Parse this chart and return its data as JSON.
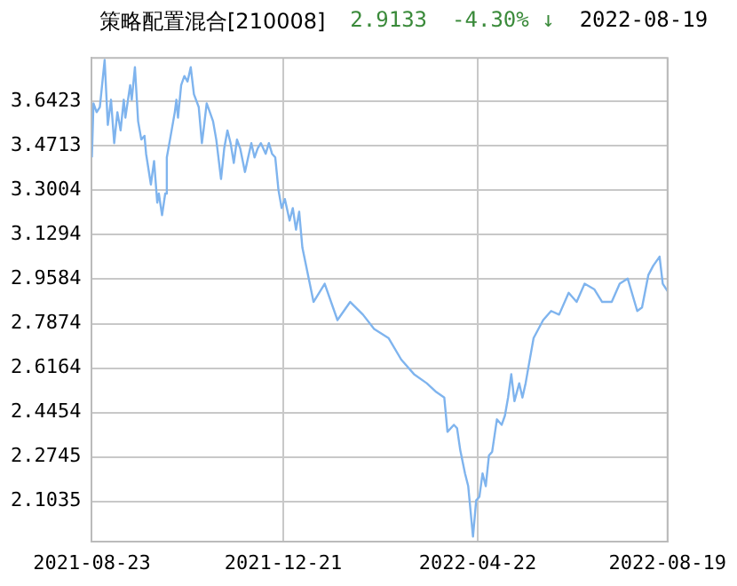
{
  "chart_data": {
    "type": "line",
    "title": "策略配置混合[210008]",
    "annotations": [
      "2.9133",
      "-4.30% ↓",
      "2022-08-19"
    ],
    "x": [
      "2021-08-23",
      "2021-08-24",
      "2021-08-26",
      "2021-08-28",
      "2021-08-31",
      "2021-09-02",
      "2021-09-04",
      "2021-09-06",
      "2021-09-08",
      "2021-09-10",
      "2021-09-12",
      "2021-09-13",
      "2021-09-16",
      "2021-09-17",
      "2021-09-19",
      "2021-09-21",
      "2021-09-23",
      "2021-09-25",
      "2021-09-26",
      "2021-09-29",
      "2021-10-01",
      "2021-10-03",
      "2021-10-04",
      "2021-10-06",
      "2021-10-08",
      "2021-10-09",
      "2021-10-11",
      "2021-10-14",
      "2021-10-15",
      "2021-10-16",
      "2021-10-18",
      "2021-10-20",
      "2021-10-22",
      "2021-10-24",
      "2021-10-26",
      "2021-10-29",
      "2021-10-31",
      "2021-11-01",
      "2021-11-03",
      "2021-11-05",
      "2021-11-07",
      "2021-11-09",
      "2021-11-12",
      "2021-11-14",
      "2021-11-16",
      "2021-11-18",
      "2021-11-20",
      "2021-11-22",
      "2021-11-24",
      "2021-11-27",
      "2021-11-29",
      "2021-12-01",
      "2021-12-03",
      "2021-12-05",
      "2021-12-07",
      "2021-12-10",
      "2021-12-12",
      "2021-12-14",
      "2021-12-16",
      "2021-12-18",
      "2021-12-20",
      "2021-12-22",
      "2021-12-25",
      "2021-12-27",
      "2021-12-29",
      "2021-12-31",
      "2022-01-02",
      "2022-01-09",
      "2022-01-16",
      "2022-01-24",
      "2022-02-01",
      "2022-02-09",
      "2022-02-16",
      "2022-02-25",
      "2022-03-05",
      "2022-03-13",
      "2022-03-21",
      "2022-03-27",
      "2022-04-01",
      "2022-04-03",
      "2022-04-07",
      "2022-04-09",
      "2022-04-11",
      "2022-04-14",
      "2022-04-16",
      "2022-04-19",
      "2022-04-21",
      "2022-04-23",
      "2022-04-25",
      "2022-04-27",
      "2022-04-29",
      "2022-05-01",
      "2022-05-04",
      "2022-05-07",
      "2022-05-09",
      "2022-05-11",
      "2022-05-13",
      "2022-05-15",
      "2022-05-18",
      "2022-05-20",
      "2022-05-22",
      "2022-05-24",
      "2022-05-27",
      "2022-06-02",
      "2022-06-07",
      "2022-06-12",
      "2022-06-18",
      "2022-06-23",
      "2022-06-28",
      "2022-07-04",
      "2022-07-09",
      "2022-07-15",
      "2022-07-20",
      "2022-07-25",
      "2022-07-31",
      "2022-08-03",
      "2022-08-07",
      "2022-08-10",
      "2022-08-14",
      "2022-08-16",
      "2022-08-19"
    ],
    "series": [
      {
        "color": "#7fb4ee",
        "values": [
          3.427,
          3.635,
          3.601,
          3.621,
          3.802,
          3.552,
          3.649,
          3.482,
          3.601,
          3.531,
          3.649,
          3.58,
          3.705,
          3.649,
          3.774,
          3.566,
          3.496,
          3.51,
          3.441,
          3.323,
          3.413,
          3.253,
          3.288,
          3.205,
          3.288,
          3.427,
          3.496,
          3.601,
          3.649,
          3.58,
          3.705,
          3.74,
          3.719,
          3.774,
          3.67,
          3.621,
          3.482,
          3.531,
          3.635,
          3.601,
          3.566,
          3.496,
          3.344,
          3.462,
          3.531,
          3.482,
          3.406,
          3.496,
          3.462,
          3.371,
          3.427,
          3.482,
          3.427,
          3.462,
          3.482,
          3.441,
          3.482,
          3.441,
          3.427,
          3.302,
          3.232,
          3.267,
          3.184,
          3.232,
          3.149,
          3.218,
          3.08,
          2.871,
          2.941,
          2.801,
          2.871,
          2.822,
          2.767,
          2.732,
          2.649,
          2.593,
          2.558,
          2.524,
          2.503,
          2.371,
          2.398,
          2.385,
          2.301,
          2.211,
          2.162,
          1.968,
          2.107,
          2.121,
          2.211,
          2.162,
          2.28,
          2.294,
          2.419,
          2.398,
          2.433,
          2.503,
          2.593,
          2.489,
          2.558,
          2.503,
          2.558,
          2.628,
          2.732,
          2.801,
          2.836,
          2.822,
          2.906,
          2.871,
          2.941,
          2.92,
          2.871,
          2.871,
          2.941,
          2.961,
          2.836,
          2.85,
          2.975,
          3.01,
          3.045,
          2.941,
          2.913
        ]
      }
    ],
    "xlim": [
      "2021-08-23",
      "2022-08-19"
    ],
    "xticks": [
      "2021-08-23",
      "2021-12-21",
      "2022-04-22",
      "2022-08-19"
    ],
    "ylim": [
      1.95,
      3.81
    ],
    "yticks": [
      2.1035,
      2.2745,
      2.4454,
      2.6164,
      2.7874,
      2.9584,
      3.1294,
      3.3004,
      3.4713,
      3.6423
    ],
    "grid": true,
    "legend": false,
    "marker": "none",
    "line_style": "solid"
  }
}
